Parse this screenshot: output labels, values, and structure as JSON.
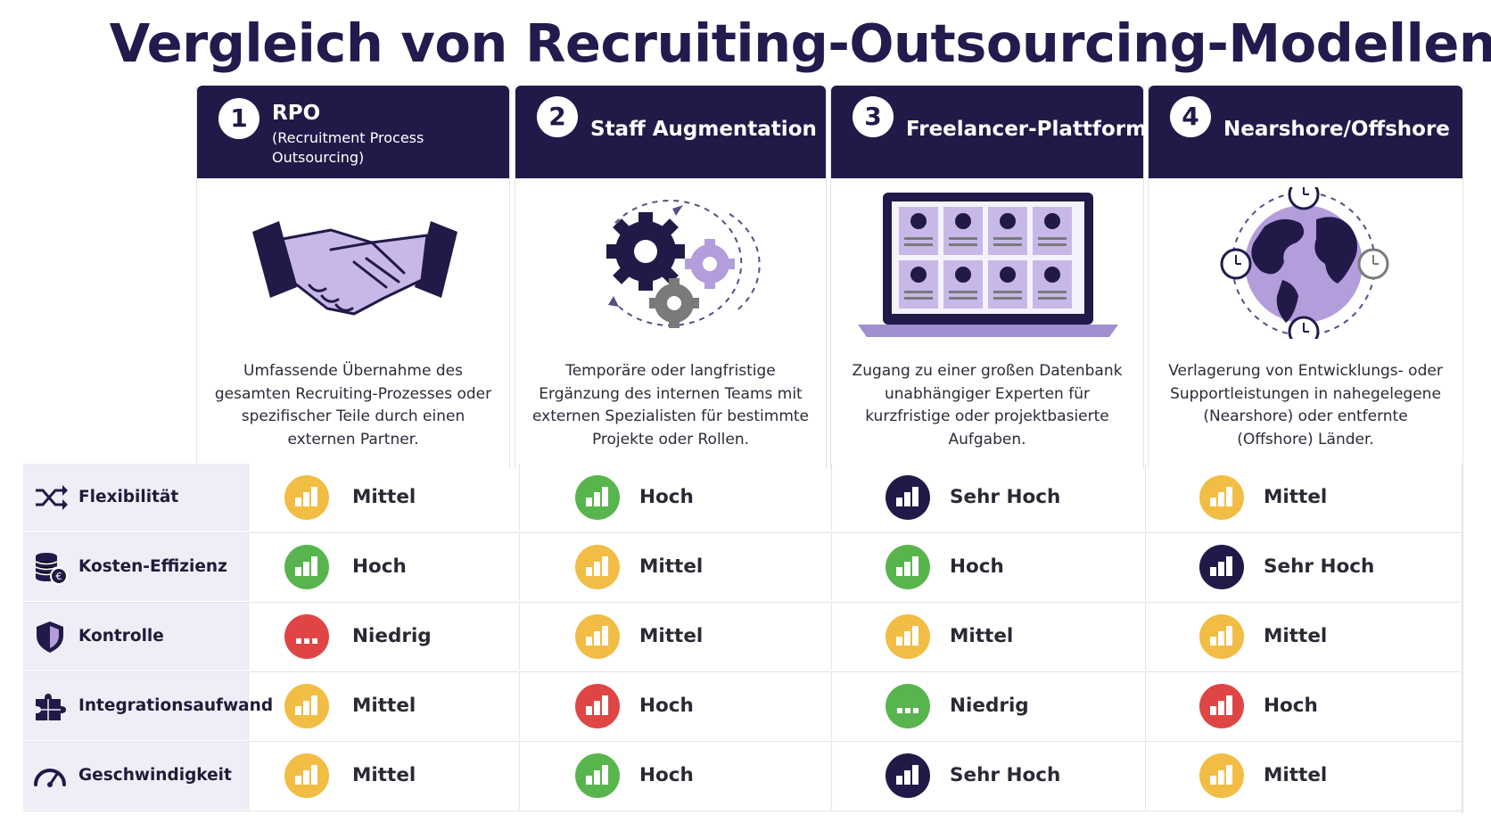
{
  "title": "Vergleich von Recruiting-Outsourcing-Modellen",
  "colors": {
    "navy": "#211a48",
    "lavender": "#b39ddb",
    "label_bg": "#efedf6",
    "niedrig": "#e04545",
    "mittel": "#f2bd44",
    "hoch": "#58b54e",
    "sehr_hoch": "#211a48"
  },
  "models": [
    {
      "number": "1",
      "title": "RPO",
      "subtitle": "(Recruitment Process Outsourcing)",
      "icon": "handshake-icon",
      "description": "Umfassende Übernahme des gesamten Recruiting-Prozesses oder spezifischer Teile durch einen externen Partner."
    },
    {
      "number": "2",
      "title": "Staff Augmentation",
      "subtitle": "",
      "icon": "gears-icon",
      "description": "Temporäre oder langfristige Ergänzung des internen Teams mit externen Spezialisten für bestimmte Projekte oder Rollen."
    },
    {
      "number": "3",
      "title": "Freelancer-Plattformen",
      "subtitle": "",
      "icon": "laptop-profiles-icon",
      "description": "Zugang zu einer großen Datenbank unabhängiger Experten für kurzfristige oder projektbasierte Aufgaben."
    },
    {
      "number": "4",
      "title": "Nearshore/Offshore",
      "subtitle": "",
      "icon": "globe-clocks-icon",
      "description": "Verlagerung von Entwicklungs- oder Supportleistungen in nahegelegene (Nearshore) oder entfernte (Offshore) Länder."
    }
  ],
  "criteria": [
    {
      "label": "Flexibilität",
      "icon": "shuffle-icon",
      "ratings": [
        {
          "text": "Mittel",
          "color": "#f2bd44",
          "bars": 3
        },
        {
          "text": "Hoch",
          "color": "#58b54e",
          "bars": 3
        },
        {
          "text": "Sehr Hoch",
          "color": "#211a48",
          "bars": 3
        },
        {
          "text": "Mittel",
          "color": "#f2bd44",
          "bars": 3
        }
      ]
    },
    {
      "label": "Kosten-Effizienz",
      "icon": "coins-euro-icon",
      "ratings": [
        {
          "text": "Hoch",
          "color": "#58b54e",
          "bars": 3
        },
        {
          "text": "Mittel",
          "color": "#f2bd44",
          "bars": 3
        },
        {
          "text": "Hoch",
          "color": "#58b54e",
          "bars": 3
        },
        {
          "text": "Sehr Hoch",
          "color": "#211a48",
          "bars": 3
        }
      ]
    },
    {
      "label": "Kontrolle",
      "icon": "shield-icon",
      "ratings": [
        {
          "text": "Niedrig",
          "color": "#e04545",
          "bars": 1
        },
        {
          "text": "Mittel",
          "color": "#f2bd44",
          "bars": 3
        },
        {
          "text": "Mittel",
          "color": "#f2bd44",
          "bars": 3
        },
        {
          "text": "Mittel",
          "color": "#f2bd44",
          "bars": 3
        }
      ]
    },
    {
      "label": "Integrationsaufwand",
      "icon": "puzzle-icon",
      "ratings": [
        {
          "text": "Mittel",
          "color": "#f2bd44",
          "bars": 3
        },
        {
          "text": "Hoch",
          "color": "#e04545",
          "bars": 3
        },
        {
          "text": "Niedrig",
          "color": "#58b54e",
          "bars": 1
        },
        {
          "text": "Hoch",
          "color": "#e04545",
          "bars": 3
        }
      ]
    },
    {
      "label": "Geschwindigkeit",
      "icon": "speedometer-icon",
      "ratings": [
        {
          "text": "Mittel",
          "color": "#f2bd44",
          "bars": 3
        },
        {
          "text": "Hoch",
          "color": "#58b54e",
          "bars": 3
        },
        {
          "text": "Sehr Hoch",
          "color": "#211a48",
          "bars": 3
        },
        {
          "text": "Mittel",
          "color": "#f2bd44",
          "bars": 3
        }
      ]
    }
  ]
}
